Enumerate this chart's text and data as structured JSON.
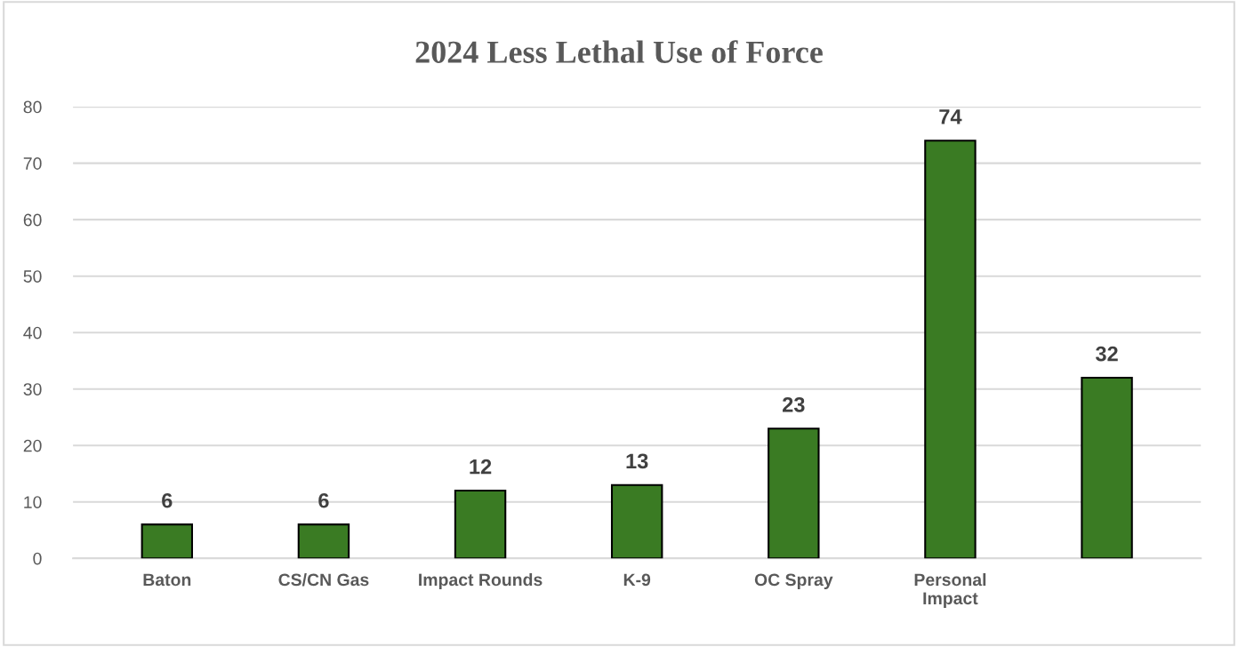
{
  "chart_data": {
    "type": "bar",
    "title": "2024 Less Lethal Use of Force",
    "categories": [
      "Baton",
      "CS/CN Gas",
      "Impact Rounds",
      "K-9",
      "OC Spray",
      "Personal\nImpact",
      null
    ],
    "values": [
      6,
      6,
      12,
      13,
      23,
      74,
      32
    ],
    "color": "#3a7b23",
    "ylim": [
      0,
      80
    ],
    "yticks": [
      0,
      10,
      20,
      30,
      40,
      50,
      60,
      70,
      80
    ],
    "grid": "y",
    "data_labels": true
  }
}
